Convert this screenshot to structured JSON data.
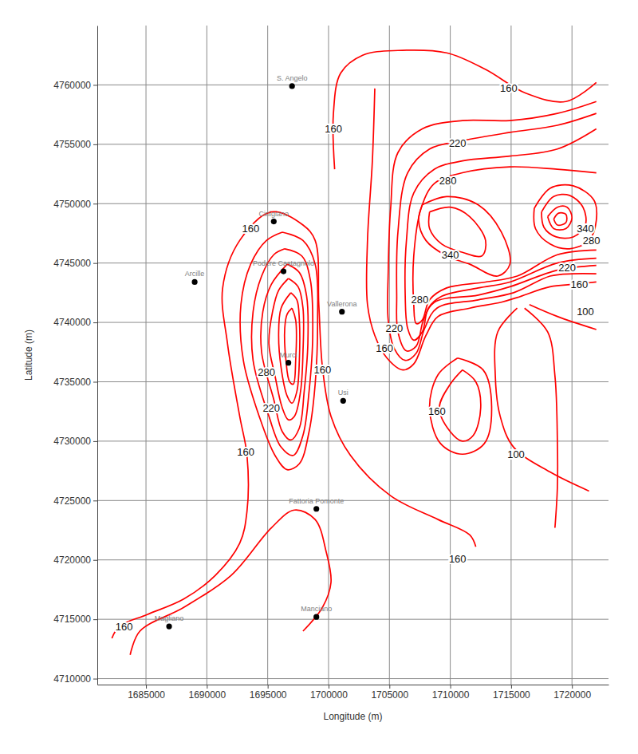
{
  "chart_data": {
    "type": "contour",
    "x_label": "Longitude (m)",
    "y_label": "Latitude (m)",
    "xlim": [
      1681000,
      1723000
    ],
    "ylim": [
      4709500,
      4765000
    ],
    "xticks": [
      1685000,
      1690000,
      1695000,
      1700000,
      1705000,
      1710000,
      1715000,
      1720000
    ],
    "yticks": [
      4710000,
      4715000,
      4720000,
      4725000,
      4730000,
      4735000,
      4740000,
      4745000,
      4750000,
      4755000,
      4760000
    ],
    "grid": true,
    "color": "#ff0000",
    "series": [
      {
        "x": [
          1682200,
          1682800,
          1685100,
          1688100,
          1690700,
          1692700,
          1693300,
          1693300,
          1692700,
          1691700,
          1691300,
          1692700,
          1695300,
          1697900,
          1698900,
          1699200,
          1699500,
          1700200,
          1701800,
          1705100,
          1709000,
          1711600,
          1712100
        ],
        "y": [
          4713400,
          4714400,
          4715400,
          4716700,
          4718700,
          4721400,
          4724100,
          4728800,
          4732100,
          4738200,
          4742900,
          4746900,
          4749300,
          4748200,
          4746900,
          4741500,
          4736200,
          4732100,
          4728800,
          4725400,
          4723400,
          4722100,
          4721100
        ]
      },
      {
        "x": [
          1683700,
          1684500,
          1688100,
          1692000,
          1695300,
          1697200,
          1698900,
          1699800,
          1700200,
          1699500,
          1697900
        ],
        "y": [
          4712000,
          4714000,
          4716000,
          4718700,
          4722700,
          4724200,
          4723400,
          4720700,
          4718100,
          4716000,
          4714000
        ]
      },
      {
        "x": [
          1696200,
          1697900,
          1698900,
          1699100,
          1698900,
          1698400,
          1697600,
          1696600,
          1695600,
          1694300,
          1693000,
          1692800,
          1693600,
          1694900,
          1696200
        ],
        "y": [
          4747600,
          4746900,
          4744900,
          4740200,
          4734800,
          4730800,
          4728100,
          4727600,
          4728800,
          4732100,
          4736800,
          4741500,
          4744900,
          4746900,
          4747600
        ]
      },
      {
        "x": [
          1696400,
          1697800,
          1698500,
          1698700,
          1698400,
          1697900,
          1697100,
          1696100,
          1695100,
          1693800,
          1693800,
          1694500,
          1695500,
          1696400
        ],
        "y": [
          4746200,
          4745600,
          4743600,
          4738900,
          4734200,
          4730500,
          4728800,
          4729500,
          4732100,
          4736800,
          4740900,
          4743900,
          4745700,
          4746200
        ]
      },
      {
        "x": [
          1696600,
          1697600,
          1698200,
          1698300,
          1698000,
          1697600,
          1696900,
          1696200,
          1695500,
          1694500,
          1694600,
          1695300,
          1696600
        ],
        "y": [
          4744900,
          4744200,
          4742200,
          4738200,
          4734200,
          4731100,
          4730100,
          4730800,
          4733500,
          4737500,
          4740900,
          4743200,
          4744900
        ]
      },
      {
        "x": [
          1696700,
          1697500,
          1697900,
          1697900,
          1697700,
          1697200,
          1696700,
          1696200,
          1695600,
          1695100,
          1695400,
          1695900,
          1696700
        ],
        "y": [
          4743700,
          4743000,
          4741200,
          4737500,
          4734200,
          4732100,
          4731800,
          4732800,
          4735500,
          4738200,
          4740900,
          4742700,
          4743700
        ]
      },
      {
        "x": [
          1696900,
          1697400,
          1697600,
          1697600,
          1697400,
          1697000,
          1696600,
          1696100,
          1695900,
          1696100,
          1696900
        ],
        "y": [
          4742500,
          4741900,
          4740200,
          4736800,
          4734200,
          4733200,
          4733800,
          4736200,
          4738900,
          4741200,
          4742500
        ]
      },
      {
        "x": [
          1697000,
          1697300,
          1697300,
          1697100,
          1696800,
          1696500,
          1696400,
          1696600,
          1697000
        ],
        "y": [
          4741200,
          4740200,
          4736800,
          4734800,
          4735000,
          4736800,
          4739500,
          4740700,
          4741200
        ]
      },
      {
        "x": [
          1700500,
          1700400,
          1701000,
          1702800,
          1705700,
          1709700,
          1712900,
          1716200,
          1719500,
          1722000
        ],
        "y": [
          4752900,
          4757600,
          4761000,
          4762500,
          4762900,
          4762700,
          4761300,
          4759300,
          4758600,
          4760200
        ]
      },
      {
        "x": [
          1703800,
          1703600,
          1703200,
          1703200,
          1703800,
          1704800,
          1706100,
          1707000,
          1708000,
          1709000,
          1711600,
          1714200,
          1715500,
          1718200,
          1720100,
          1722000
        ],
        "y": [
          4759700,
          4753600,
          4746900,
          4741500,
          4738900,
          4737000,
          4736000,
          4736500,
          4738900,
          4740500,
          4741200,
          4741700,
          4742100,
          4743000,
          4743200,
          4743400
        ]
      },
      {
        "x": [
          1722000,
          1718800,
          1714900,
          1711000,
          1707700,
          1705700,
          1705100,
          1704900,
          1704900,
          1705400,
          1706300,
          1707200,
          1707900,
          1708900,
          1712300,
          1715200,
          1718200,
          1720100,
          1722000
        ],
        "y": [
          4758600,
          4757600,
          4757000,
          4757000,
          4756300,
          4754300,
          4749600,
          4744200,
          4740200,
          4737800,
          4736800,
          4737400,
          4739500,
          4741200,
          4741900,
          4742500,
          4743900,
          4744100,
          4744100
        ]
      },
      {
        "x": [
          1722000,
          1718800,
          1714900,
          1711000,
          1708300,
          1706500,
          1705700,
          1705600,
          1705700,
          1706400,
          1707200,
          1707800,
          1708700,
          1712300,
          1714900,
          1718800,
          1722000
        ],
        "y": [
          4757600,
          4756600,
          4756000,
          4755300,
          4754600,
          4752600,
          4747600,
          4742200,
          4739200,
          4737600,
          4738000,
          4740200,
          4741700,
          4742300,
          4743000,
          4744400,
          4744800
        ]
      },
      {
        "x": [
          1722000,
          1718800,
          1714900,
          1711000,
          1708700,
          1707000,
          1706400,
          1706300,
          1706500,
          1707000,
          1707700,
          1708200,
          1709300,
          1712300,
          1714900,
          1718800,
          1722000
        ],
        "y": [
          4756300,
          4754600,
          4754000,
          4753600,
          4752900,
          4750900,
          4746900,
          4742200,
          4739500,
          4738500,
          4739200,
          4741200,
          4742200,
          4742900,
          4743400,
          4745000,
          4745400
        ]
      },
      {
        "x": [
          1722000,
          1718800,
          1714900,
          1711000,
          1708700,
          1707600,
          1707000,
          1707000,
          1707200,
          1707700,
          1708300,
          1709700,
          1712900,
          1715500,
          1718800,
          1722000
        ],
        "y": [
          4752600,
          4752900,
          4753100,
          4752600,
          4751700,
          4749600,
          4745600,
          4741500,
          4739900,
          4740200,
          4741900,
          4742900,
          4743400,
          4743900,
          4745700,
          4746100
        ]
      },
      {
        "x": [
          1707700,
          1709700,
          1712300,
          1714200,
          1714900,
          1713900,
          1711600,
          1709700,
          1708000,
          1707400,
          1707700
        ],
        "y": [
          4749900,
          4750600,
          4749900,
          4747600,
          4744900,
          4743900,
          4744900,
          4745600,
          4746900,
          4748600,
          4749900
        ]
      },
      {
        "x": [
          1708300,
          1710000,
          1711600,
          1712900,
          1712600,
          1711000,
          1709300,
          1708300,
          1708300
        ],
        "y": [
          4749300,
          4749700,
          4748900,
          4746900,
          4745600,
          4745900,
          4746600,
          4747900,
          4749300
        ]
      },
      {
        "x": [
          1716900,
          1718200,
          1720100,
          1721800,
          1722000,
          1721400,
          1719800,
          1718200,
          1717000,
          1716900
        ],
        "y": [
          4749600,
          4751300,
          4751500,
          4750300,
          4748600,
          4746900,
          4746200,
          4746600,
          4747900,
          4749600
        ]
      },
      {
        "x": [
          1717500,
          1718500,
          1719800,
          1720900,
          1721100,
          1720100,
          1718700,
          1717700,
          1717500
        ],
        "y": [
          4749300,
          4750600,
          4750700,
          4749700,
          4748200,
          4747200,
          4747200,
          4748000,
          4749300
        ]
      },
      {
        "x": [
          1718000,
          1718800,
          1719600,
          1720000,
          1719500,
          1718500,
          1718000
        ],
        "y": [
          4748900,
          4749700,
          4749700,
          4748800,
          4747900,
          4747900,
          4748900
        ]
      },
      {
        "x": [
          1718500,
          1718900,
          1719500,
          1719500,
          1718800,
          1718500
        ],
        "y": [
          4748700,
          4749200,
          4749100,
          4748400,
          4748200,
          4748700
        ]
      },
      {
        "x": [
          1711000,
          1712100,
          1712500,
          1711900,
          1711000,
          1710000,
          1709100,
          1710000,
          1711000
        ],
        "y": [
          4736000,
          4735000,
          4732800,
          4730500,
          4730000,
          4730800,
          4732800,
          4734800,
          4736000
        ]
      },
      {
        "x": [
          1710600,
          1712700,
          1713400,
          1712800,
          1711000,
          1709200,
          1708300,
          1709000,
          1710600
        ],
        "y": [
          4737000,
          4736000,
          4732800,
          4729800,
          4728900,
          4729800,
          4732800,
          4735600,
          4737000
        ]
      },
      {
        "x": [
          1715500,
          1713900,
          1713700,
          1714100,
          1715200,
          1718200,
          1721400
        ],
        "y": [
          4741200,
          4739200,
          4735500,
          4732100,
          4729500,
          4727400,
          4725800
        ]
      },
      {
        "x": [
          1716100,
          1718000,
          1718600,
          1718800,
          1718800,
          1718600
        ],
        "y": [
          4741200,
          4739200,
          4735500,
          4730100,
          4726100,
          4722700
        ]
      },
      {
        "x": [
          1716500,
          1718800,
          1722000
        ],
        "y": [
          4741500,
          4740500,
          4739400
        ]
      }
    ],
    "contour_labels": [
      {
        "value": 160,
        "x": 1693600,
        "y": 4747900
      },
      {
        "value": 160,
        "x": 1699500,
        "y": 4736000
      },
      {
        "value": 160,
        "x": 1693200,
        "y": 4729100
      },
      {
        "value": 280,
        "x": 1694900,
        "y": 4735800
      },
      {
        "value": 220,
        "x": 1695300,
        "y": 4732800
      },
      {
        "value": 160,
        "x": 1683200,
        "y": 4714400
      },
      {
        "value": 160,
        "x": 1710600,
        "y": 4720100
      },
      {
        "value": 160,
        "x": 1700400,
        "y": 4756300
      },
      {
        "value": 160,
        "x": 1714800,
        "y": 4759700
      },
      {
        "value": 220,
        "x": 1710600,
        "y": 4755100
      },
      {
        "value": 280,
        "x": 1709800,
        "y": 4751900
      },
      {
        "value": 340,
        "x": 1710000,
        "y": 4745700
      },
      {
        "value": 280,
        "x": 1707500,
        "y": 4741900
      },
      {
        "value": 220,
        "x": 1705400,
        "y": 4739500
      },
      {
        "value": 160,
        "x": 1704600,
        "y": 4737800
      },
      {
        "value": 340,
        "x": 1721100,
        "y": 4747900
      },
      {
        "value": 280,
        "x": 1721600,
        "y": 4746900
      },
      {
        "value": 220,
        "x": 1719600,
        "y": 4744600
      },
      {
        "value": 160,
        "x": 1720600,
        "y": 4743200
      },
      {
        "value": 100,
        "x": 1721100,
        "y": 4740900
      },
      {
        "value": 160,
        "x": 1708900,
        "y": 4732500
      },
      {
        "value": 100,
        "x": 1715400,
        "y": 4728900
      }
    ],
    "points": {
      "labels": [
        "S. Angelo",
        "Cinigiano",
        "Podere Castagnolo",
        "Arcille",
        "Vallerona",
        "Murci",
        "Usi",
        "Fattoria Pomonte",
        "Manciano",
        "Magliano"
      ],
      "x": [
        1697000,
        1695500,
        1696300,
        1689000,
        1701100,
        1696700,
        1701200,
        1699000,
        1699000,
        1686900
      ],
      "y": [
        4759900,
        4748500,
        4744300,
        4743400,
        4740900,
        4736600,
        4733400,
        4724300,
        4715200,
        4714400
      ],
      "color": "#000000",
      "marker": "circle"
    }
  }
}
